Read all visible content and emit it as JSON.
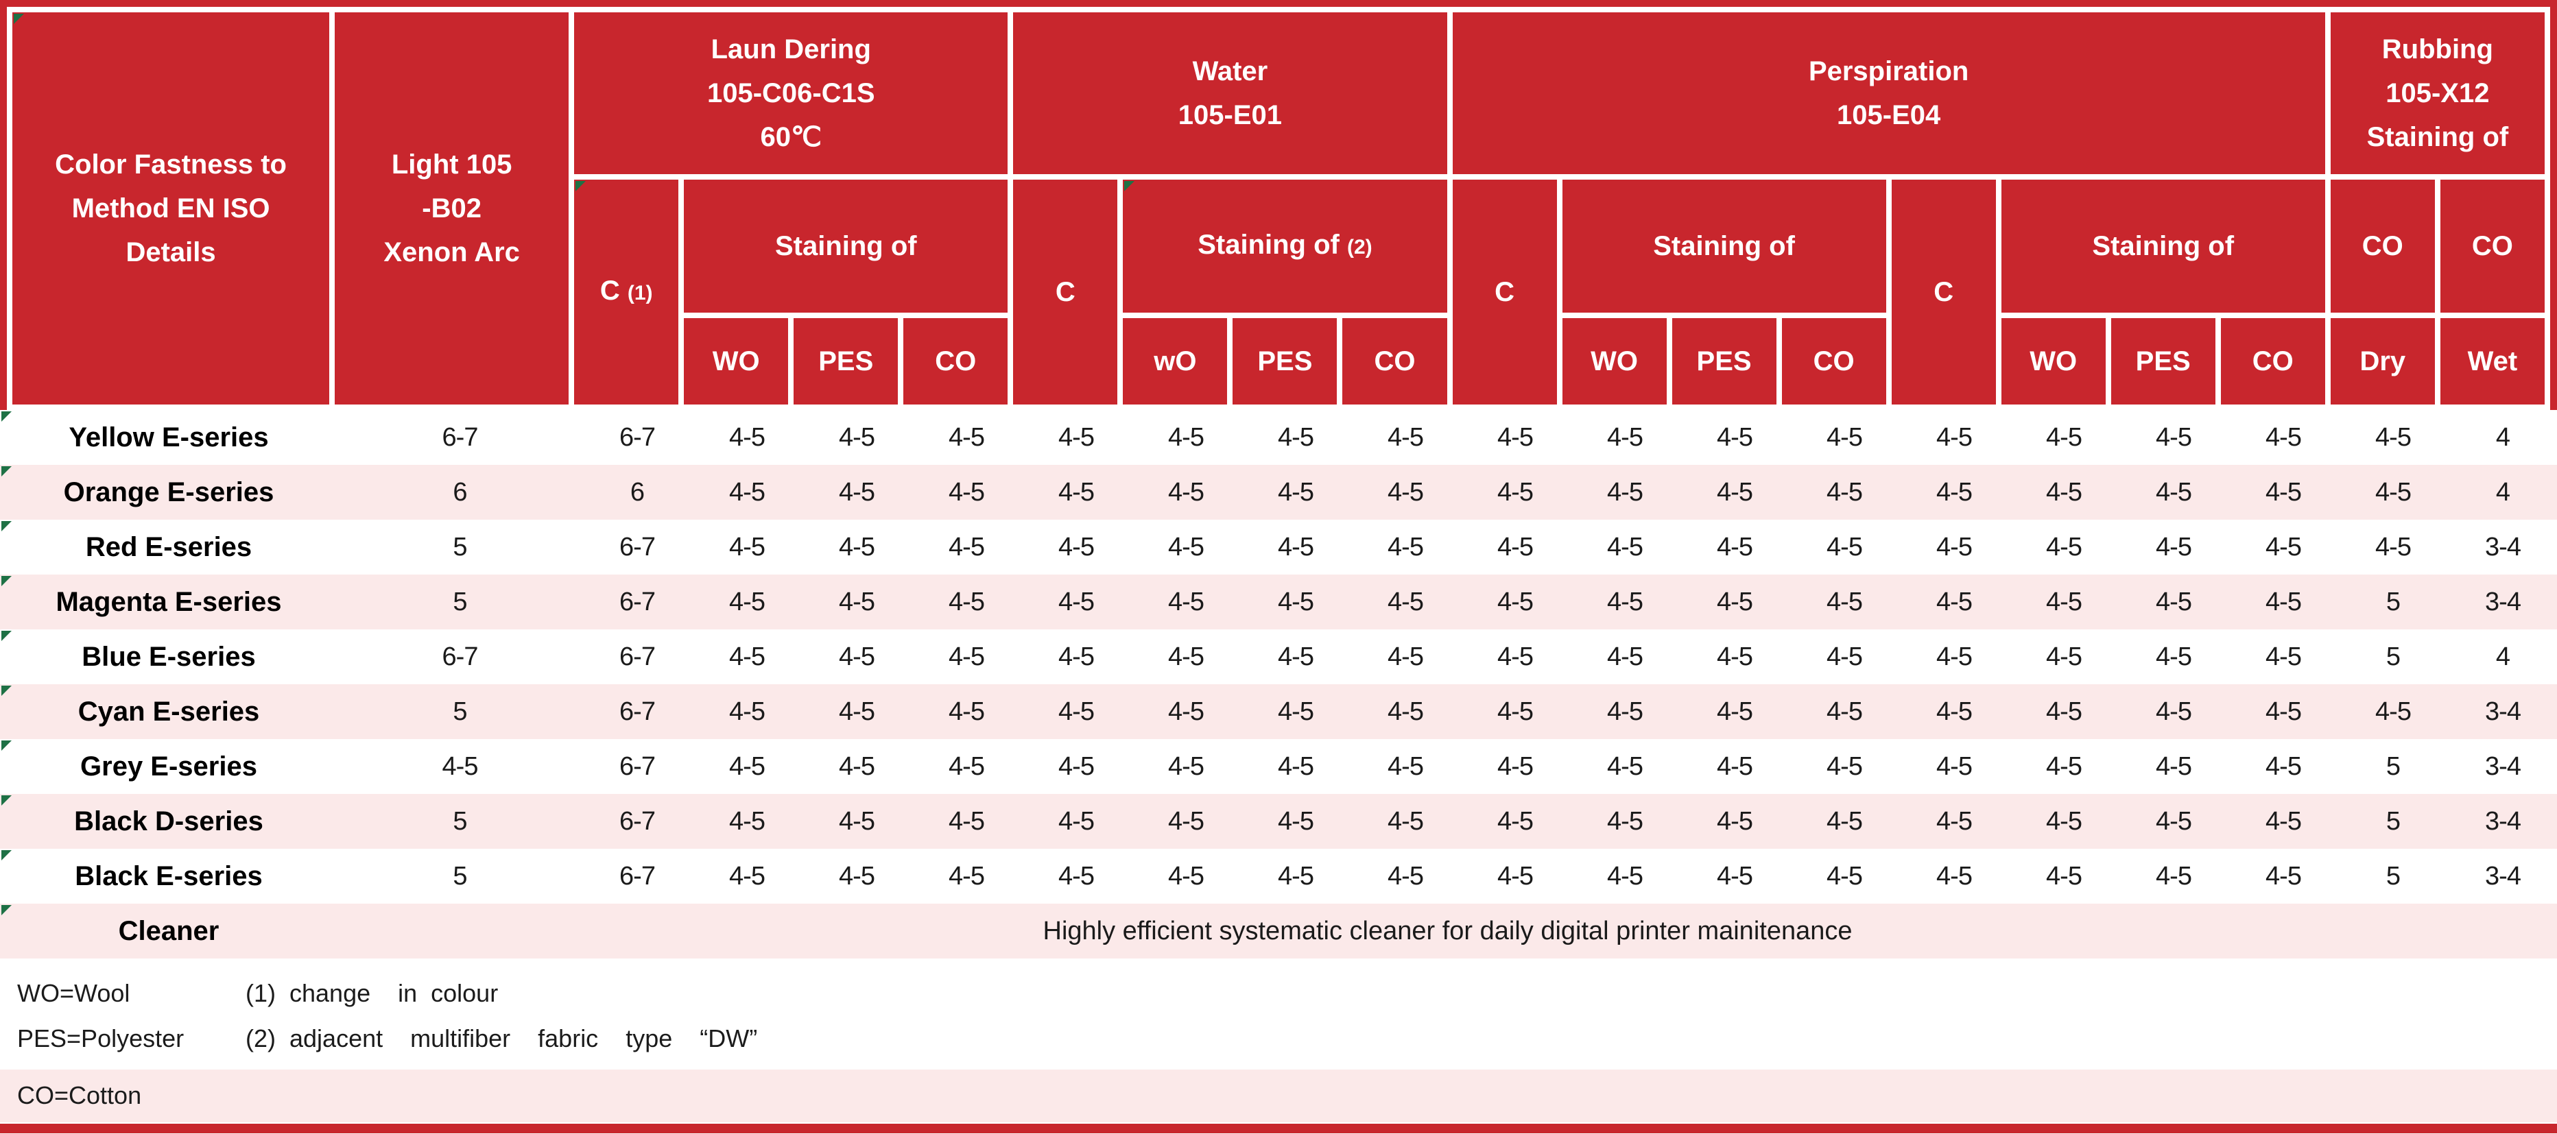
{
  "colors": {
    "header_red": "#C8262D",
    "row_pink": "#FBE9E9",
    "marker_green": "#1E7145",
    "bottom_bar_red": "#C8262D"
  },
  "table": {
    "header": {
      "col1_lines": [
        "Color Fastness to",
        "Method EN ISO",
        "Details"
      ],
      "col2_lines": [
        "Light 105",
        "-B02",
        "Xenon Arc"
      ],
      "laundering": {
        "title_lines": [
          "Laun Dering",
          "105-C06-C1S",
          "60℃"
        ],
        "c": "C",
        "c_note": "(1)",
        "staining": "Staining of",
        "sub": [
          "WO",
          "PES",
          "CO"
        ]
      },
      "water": {
        "title_lines": [
          "Water",
          "105-E01"
        ],
        "c": "C",
        "staining": "Staining of",
        "staining_note": "(2)",
        "sub": [
          "wO",
          "PES",
          "CO"
        ]
      },
      "perspiration": {
        "title_lines": [
          "Perspiration",
          "105-E04"
        ],
        "c1": "C",
        "staining1": "Staining of",
        "sub1": [
          "WO",
          "PES",
          "CO"
        ],
        "c2": "C",
        "staining2": "Staining of",
        "sub2": [
          "WO",
          "PES",
          "CO"
        ]
      },
      "rubbing": {
        "title_lines": [
          "Rubbing",
          "105-X12",
          "Staining of"
        ],
        "mid": [
          "CO",
          "CO"
        ],
        "sub": [
          "Dry",
          "Wet"
        ]
      }
    },
    "rows": [
      {
        "name": "Yellow E-series",
        "values": [
          "6-7",
          "6-7",
          "4-5",
          "4-5",
          "4-5",
          "4-5",
          "4-5",
          "4-5",
          "4-5",
          "4-5",
          "4-5",
          "4-5",
          "4-5",
          "4-5",
          "4-5",
          "4-5",
          "4-5",
          "4-5",
          "4"
        ]
      },
      {
        "name": "Orange E-series",
        "values": [
          "6",
          "6",
          "4-5",
          "4-5",
          "4-5",
          "4-5",
          "4-5",
          "4-5",
          "4-5",
          "4-5",
          "4-5",
          "4-5",
          "4-5",
          "4-5",
          "4-5",
          "4-5",
          "4-5",
          "4-5",
          "4"
        ]
      },
      {
        "name": "Red E-series",
        "values": [
          "5",
          "6-7",
          "4-5",
          "4-5",
          "4-5",
          "4-5",
          "4-5",
          "4-5",
          "4-5",
          "4-5",
          "4-5",
          "4-5",
          "4-5",
          "4-5",
          "4-5",
          "4-5",
          "4-5",
          "4-5",
          "3-4"
        ]
      },
      {
        "name": "Magenta E-series",
        "values": [
          "5",
          "6-7",
          "4-5",
          "4-5",
          "4-5",
          "4-5",
          "4-5",
          "4-5",
          "4-5",
          "4-5",
          "4-5",
          "4-5",
          "4-5",
          "4-5",
          "4-5",
          "4-5",
          "4-5",
          "5",
          "3-4"
        ]
      },
      {
        "name": "Blue E-series",
        "values": [
          "6-7",
          "6-7",
          "4-5",
          "4-5",
          "4-5",
          "4-5",
          "4-5",
          "4-5",
          "4-5",
          "4-5",
          "4-5",
          "4-5",
          "4-5",
          "4-5",
          "4-5",
          "4-5",
          "4-5",
          "5",
          "4"
        ]
      },
      {
        "name": "Cyan E-series",
        "values": [
          "5",
          "6-7",
          "4-5",
          "4-5",
          "4-5",
          "4-5",
          "4-5",
          "4-5",
          "4-5",
          "4-5",
          "4-5",
          "4-5",
          "4-5",
          "4-5",
          "4-5",
          "4-5",
          "4-5",
          "4-5",
          "3-4"
        ]
      },
      {
        "name": "Grey E-series",
        "values": [
          "4-5",
          "6-7",
          "4-5",
          "4-5",
          "4-5",
          "4-5",
          "4-5",
          "4-5",
          "4-5",
          "4-5",
          "4-5",
          "4-5",
          "4-5",
          "4-5",
          "4-5",
          "4-5",
          "4-5",
          "5",
          "3-4"
        ]
      },
      {
        "name": "Black D-series",
        "values": [
          "5",
          "6-7",
          "4-5",
          "4-5",
          "4-5",
          "4-5",
          "4-5",
          "4-5",
          "4-5",
          "4-5",
          "4-5",
          "4-5",
          "4-5",
          "4-5",
          "4-5",
          "4-5",
          "4-5",
          "5",
          "3-4"
        ]
      },
      {
        "name": "Black E-series",
        "values": [
          "5",
          "6-7",
          "4-5",
          "4-5",
          "4-5",
          "4-5",
          "4-5",
          "4-5",
          "4-5",
          "4-5",
          "4-5",
          "4-5",
          "4-5",
          "4-5",
          "4-5",
          "4-5",
          "4-5",
          "5",
          "3-4"
        ]
      }
    ],
    "cleaner": {
      "name": "Cleaner",
      "description": "Highly efficient systematic cleaner for daily digital printer mainitenance"
    }
  },
  "footnotes": {
    "legend": [
      "WO=Wool",
      "PES=Polyester",
      "CO=Cotton"
    ],
    "notes": [
      "(1) change  in colour",
      "(2) adjacent  multifiber  fabric  type  “DW”"
    ]
  }
}
